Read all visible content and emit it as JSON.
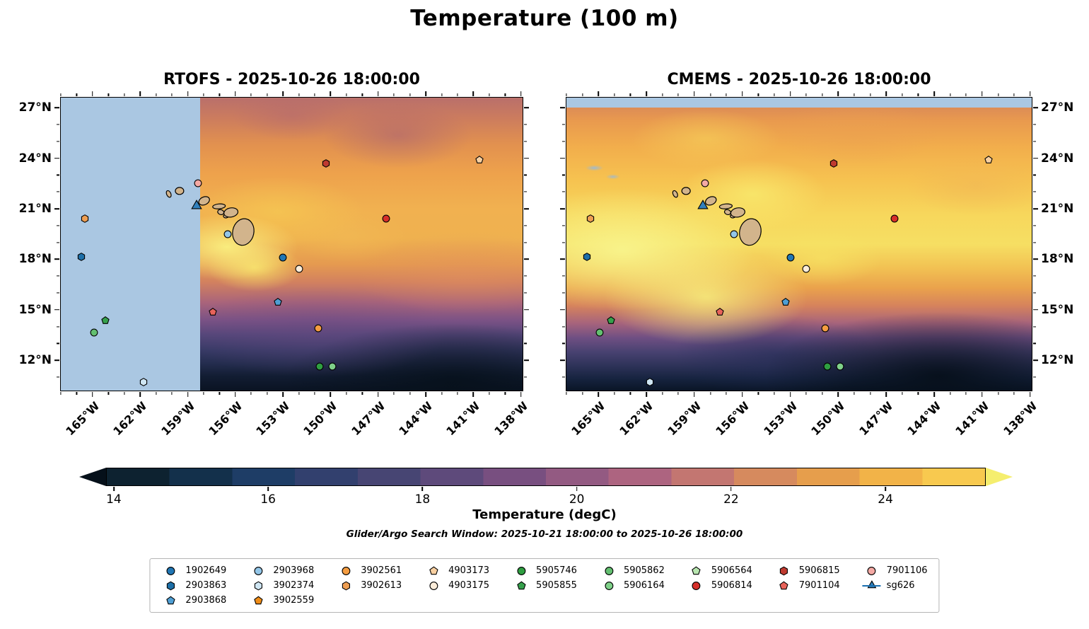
{
  "title": "Temperature (100 m)",
  "footnote": "Glider/Argo Search Window: 2025-10-21 18:00:00 to 2025-10-26 18:00:00",
  "chart_data": {
    "type": "heatmap",
    "title": "Temperature (100 m)",
    "variable": "Temperature",
    "depth_label": "100 m",
    "panels": [
      {
        "id": "rtofs",
        "title": "RTOFS - 2025-10-26 18:00:00",
        "yticks_side": "left",
        "nodata_note": "no-data mask west of ~158.2W shown in light blue"
      },
      {
        "id": "cmems",
        "title": "CMEMS - 2025-10-26 18:00:00",
        "yticks_side": "right",
        "nodata_note": "thin light blue no-data stripe along 27N"
      }
    ],
    "lon_range": [
      -167.0,
      -137.9
    ],
    "lat_range": [
      10.2,
      27.6
    ],
    "x_ticks": [
      {
        "lon": -165,
        "label": "165°W"
      },
      {
        "lon": -162,
        "label": "162°W"
      },
      {
        "lon": -159,
        "label": "159°W"
      },
      {
        "lon": -156,
        "label": "156°W"
      },
      {
        "lon": -153,
        "label": "153°W"
      },
      {
        "lon": -150,
        "label": "150°W"
      },
      {
        "lon": -147,
        "label": "147°W"
      },
      {
        "lon": -144,
        "label": "144°W"
      },
      {
        "lon": -141,
        "label": "141°W"
      },
      {
        "lon": -138,
        "label": "138°W"
      }
    ],
    "y_ticks": [
      {
        "lat": 12,
        "label": "12°N"
      },
      {
        "lat": 15,
        "label": "15°N"
      },
      {
        "lat": 18,
        "label": "18°N"
      },
      {
        "lat": 21,
        "label": "21°N"
      },
      {
        "lat": 24,
        "label": "24°N"
      },
      {
        "lat": 27,
        "label": "27°N"
      }
    ],
    "colorbar": {
      "label": "Temperature (degC)",
      "ticks": [
        14,
        16,
        18,
        20,
        22,
        24
      ],
      "vmin": 13.9,
      "vmax": 25.3,
      "extend": "both",
      "under_color": "#05101a",
      "over_color": "#f5ee6e",
      "colors": [
        "#0d2230",
        "#13304b",
        "#1e3d66",
        "#32406e",
        "#474573",
        "#5e4a7b",
        "#784f80",
        "#935a82",
        "#ad6480",
        "#c37671",
        "#d68a5e",
        "#e69e4c",
        "#f2b348",
        "#f8c94f"
      ]
    },
    "nodata_color": "#aac7e2",
    "island_color": "#d2b48c",
    "legend_columns": [
      [
        {
          "id": "1902649",
          "shape": "circle",
          "color": "#2076b4"
        },
        {
          "id": "2903863",
          "shape": "hexagon",
          "color": "#1d6fa8"
        },
        {
          "id": "2903868",
          "shape": "pentagon",
          "color": "#4f9fd4"
        }
      ],
      [
        {
          "id": "2903968",
          "shape": "circle",
          "color": "#93c6e8"
        },
        {
          "id": "3902374",
          "shape": "hexagon",
          "color": "#cfe6f3"
        },
        {
          "id": "3902559",
          "shape": "pentagon",
          "color": "#ef8d18"
        }
      ],
      [
        {
          "id": "3902561",
          "shape": "circle",
          "color": "#f59d41"
        },
        {
          "id": "3902613",
          "shape": "hexagon",
          "color": "#ee9e52"
        }
      ],
      [
        {
          "id": "4903173",
          "shape": "pentagon",
          "color": "#f9d0a1"
        },
        {
          "id": "4903175",
          "shape": "circle",
          "color": "#fcedda"
        }
      ],
      [
        {
          "id": "5905746",
          "shape": "circle",
          "color": "#2f9e41"
        },
        {
          "id": "5905855",
          "shape": "pentagon",
          "color": "#36a04c"
        }
      ],
      [
        {
          "id": "5905862",
          "shape": "circle",
          "color": "#63bf70"
        },
        {
          "id": "5906164",
          "shape": "circle",
          "color": "#7fd189"
        }
      ],
      [
        {
          "id": "5906564",
          "shape": "pentagon",
          "color": "#b8e6b0"
        },
        {
          "id": "5906814",
          "shape": "circle",
          "color": "#d62f2a"
        }
      ],
      [
        {
          "id": "5906815",
          "shape": "hexagon",
          "color": "#bf3a30"
        },
        {
          "id": "7901104",
          "shape": "pentagon",
          "color": "#e8635a"
        }
      ],
      [
        {
          "id": "7901106",
          "shape": "circle",
          "color": "#f4a9a4"
        },
        {
          "id": "sg626",
          "shape": "triangle",
          "color": "#3181bd",
          "line": true
        }
      ]
    ],
    "markers": [
      {
        "id": "7901106",
        "lon": -158.35,
        "lat": 22.5
      },
      {
        "id": "sg626",
        "lon": -158.45,
        "lat": 21.15
      },
      {
        "id": "3902613",
        "lon": -165.5,
        "lat": 20.4
      },
      {
        "id": "2903863",
        "lon": -165.7,
        "lat": 18.15
      },
      {
        "id": "2903968",
        "lon": -156.5,
        "lat": 19.5
      },
      {
        "id": "5906815",
        "lon": -150.3,
        "lat": 23.7
      },
      {
        "id": "4903173",
        "lon": -140.6,
        "lat": 23.9
      },
      {
        "id": "5906814",
        "lon": -146.5,
        "lat": 20.4
      },
      {
        "id": "1902649",
        "lon": -153.0,
        "lat": 18.1
      },
      {
        "id": "4903175",
        "lon": -152.0,
        "lat": 17.45
      },
      {
        "id": "2903868",
        "lon": -153.3,
        "lat": 15.45
      },
      {
        "id": "7901104",
        "lon": -157.4,
        "lat": 14.85
      },
      {
        "id": "3902561",
        "lon": -150.8,
        "lat": 13.9
      },
      {
        "id": "5905855",
        "lon": -164.2,
        "lat": 14.35
      },
      {
        "id": "5905862",
        "lon": -164.9,
        "lat": 13.65
      },
      {
        "id": "5905746",
        "lon": -150.7,
        "lat": 11.65
      },
      {
        "id": "5906164",
        "lon": -149.9,
        "lat": 11.65
      },
      {
        "id": "3902374",
        "lon": -161.8,
        "lat": 10.7
      }
    ]
  }
}
